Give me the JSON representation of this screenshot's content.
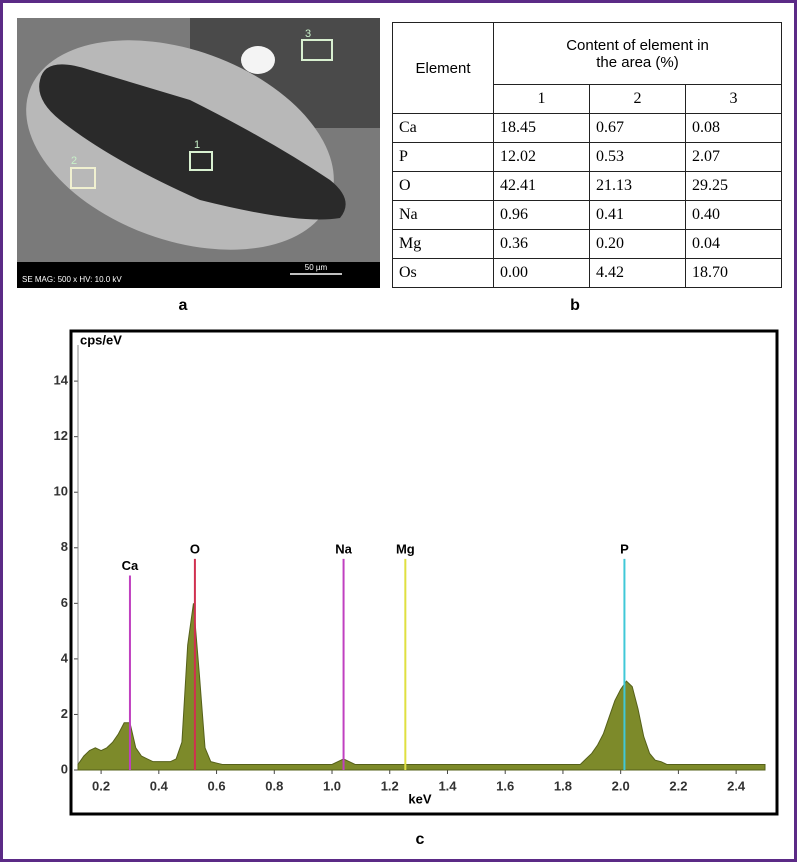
{
  "panels": {
    "a": "a",
    "b": "b",
    "c": "c"
  },
  "image": {
    "caption": "SE  MAG: 500 x  HV: 10.0 kV",
    "scale": "50 µm",
    "areas": [
      "1",
      "2",
      "3"
    ]
  },
  "table": {
    "header": "Element",
    "group": "Content of element in the area (%)",
    "columns": [
      "1",
      "2",
      "3"
    ],
    "rows": [
      [
        "Ca",
        "18.45",
        "0.67",
        "0.08"
      ],
      [
        "P",
        "12.02",
        "0.53",
        "2.07"
      ],
      [
        "O",
        "42.41",
        "21.13",
        "29.25"
      ],
      [
        "Na",
        "0.96",
        "0.41",
        "0.40"
      ],
      [
        "Mg",
        "0.36",
        "0.20",
        "0.04"
      ],
      [
        "Os",
        "0.00",
        "4.42",
        "18.70"
      ]
    ]
  },
  "chart_data": {
    "type": "area",
    "y_label": "cps/eV",
    "x_label": "keV",
    "color": "#7d8a2a",
    "xlim": [
      0.12,
      2.5
    ],
    "ylim": [
      0,
      15.3
    ],
    "xticks": [
      0.2,
      0.4,
      0.6,
      0.8,
      {
        "value": 1.0,
        "label": "1.0"
      },
      1.2,
      1.4,
      1.6,
      1.8,
      {
        "value": 2.0,
        "label": "2.0"
      },
      2.2,
      2.4
    ],
    "yticks": [
      0,
      2,
      4,
      6,
      8,
      10,
      12,
      14
    ],
    "x": [
      0.12,
      0.14,
      0.16,
      0.18,
      0.2,
      0.22,
      0.24,
      0.26,
      0.28,
      0.3,
      0.32,
      0.34,
      0.36,
      0.38,
      0.4,
      0.42,
      0.44,
      0.46,
      0.48,
      0.5,
      0.52,
      0.54,
      0.56,
      0.58,
      0.6,
      0.62,
      0.64,
      0.66,
      0.68,
      0.7,
      0.72,
      0.74,
      0.76,
      0.78,
      0.8,
      0.82,
      0.84,
      0.86,
      0.88,
      0.9,
      0.92,
      0.94,
      0.96,
      0.98,
      1.0,
      1.02,
      1.04,
      1.06,
      1.08,
      1.1,
      1.12,
      1.14,
      1.16,
      1.18,
      1.2,
      1.22,
      1.24,
      1.26,
      1.28,
      1.3,
      1.32,
      1.34,
      1.36,
      1.38,
      1.4,
      1.42,
      1.44,
      1.46,
      1.48,
      1.5,
      1.52,
      1.54,
      1.56,
      1.58,
      1.6,
      1.62,
      1.64,
      1.66,
      1.68,
      1.7,
      1.72,
      1.74,
      1.76,
      1.78,
      1.8,
      1.82,
      1.84,
      1.86,
      1.88,
      1.9,
      1.92,
      1.94,
      1.96,
      1.98,
      2.0,
      2.02,
      2.04,
      2.06,
      2.08,
      2.1,
      2.12,
      2.14,
      2.16,
      2.18,
      2.2,
      2.22,
      2.24,
      2.26,
      2.28,
      2.3,
      2.32,
      2.34,
      2.36,
      2.38,
      2.4,
      2.42,
      2.44,
      2.46,
      2.48,
      2.5
    ],
    "values": [
      0.2,
      0.5,
      0.7,
      0.8,
      0.7,
      0.8,
      1.0,
      1.3,
      1.7,
      1.7,
      0.8,
      0.5,
      0.4,
      0.3,
      0.3,
      0.3,
      0.3,
      0.4,
      1.0,
      4.5,
      6.0,
      3.5,
      0.8,
      0.3,
      0.25,
      0.2,
      0.2,
      0.2,
      0.2,
      0.2,
      0.2,
      0.2,
      0.2,
      0.2,
      0.2,
      0.2,
      0.2,
      0.2,
      0.2,
      0.2,
      0.2,
      0.2,
      0.2,
      0.2,
      0.2,
      0.3,
      0.4,
      0.3,
      0.2,
      0.2,
      0.2,
      0.2,
      0.2,
      0.2,
      0.2,
      0.2,
      0.2,
      0.2,
      0.2,
      0.2,
      0.2,
      0.2,
      0.2,
      0.2,
      0.2,
      0.2,
      0.2,
      0.2,
      0.2,
      0.2,
      0.2,
      0.2,
      0.2,
      0.2,
      0.2,
      0.2,
      0.2,
      0.2,
      0.2,
      0.2,
      0.2,
      0.2,
      0.2,
      0.2,
      0.2,
      0.2,
      0.2,
      0.2,
      0.4,
      0.6,
      0.9,
      1.3,
      1.9,
      2.5,
      2.9,
      3.2,
      3.0,
      2.2,
      1.2,
      0.6,
      0.35,
      0.3,
      0.2,
      0.2,
      0.2,
      0.2,
      0.2,
      0.2,
      0.2,
      0.2,
      0.2,
      0.2,
      0.2,
      0.2,
      0.2,
      0.2,
      0.2,
      0.2,
      0.2,
      0.2
    ],
    "markers": [
      {
        "label": "Ca",
        "x": 0.3,
        "height": 7.0,
        "color": "#c040c0"
      },
      {
        "label": "O",
        "x": 0.525,
        "height": 7.6,
        "color": "#d03050"
      },
      {
        "label": "Na",
        "x": 1.04,
        "height": 7.6,
        "color": "#c040c0"
      },
      {
        "label": "Mg",
        "x": 1.254,
        "height": 7.6,
        "color": "#e0e040"
      },
      {
        "label": "P",
        "x": 2.013,
        "height": 7.6,
        "color": "#40c8d8"
      }
    ]
  }
}
